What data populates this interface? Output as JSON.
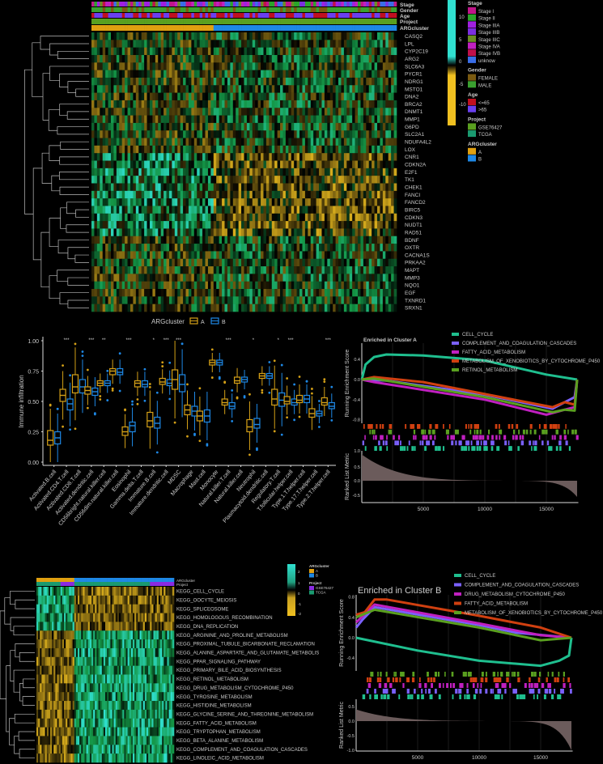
{
  "colors": {
    "background": "#000000",
    "clusterA": "#d4a017",
    "clusterB": "#1e88e5",
    "heat_low": "#f0c020",
    "heat_mid": "#000000",
    "heat_high": "#30e0d0"
  },
  "heatmap_genes": {
    "annotation_labels": [
      "Stage",
      "Gender",
      "Age",
      "Project",
      "ARGcluster"
    ],
    "genes": [
      "CASQ2",
      "LPL",
      "CYP2C19",
      "ARG2",
      "SLC6A3",
      "PYCR1",
      "NDRG1",
      "MSTO1",
      "DNA2",
      "BRCA2",
      "DNMT1",
      "MMP1",
      "G6PD",
      "SLC2A1",
      "NDUFA4L2",
      "LOX",
      "CNR1",
      "CDKN2A",
      "E2F1",
      "TK1",
      "CHEK1",
      "FANCI",
      "FANCD2",
      "BIRC5",
      "CDKN3",
      "NUDT1",
      "RAD51",
      "BDNF",
      "OXTR",
      "CACNA1S",
      "PRKAA2",
      "MAPT",
      "MMP3",
      "NQO1",
      "EGF",
      "TXNRD1",
      "SRXN1"
    ],
    "colorbar_ticks": [
      "10",
      "5",
      "0",
      "-5",
      "-10"
    ],
    "legend": [
      {
        "title": "Stage",
        "items": [
          {
            "label": "Stage I",
            "color": "#c0158a"
          },
          {
            "label": "Stage II",
            "color": "#2aa52a"
          },
          {
            "label": "Stage IIIA",
            "color": "#a020e0"
          },
          {
            "label": "Stage IIIB",
            "color": "#7b2fe0"
          },
          {
            "label": "Stage IIIC",
            "color": "#6b8e23"
          },
          {
            "label": "Stage IVA",
            "color": "#c020c0"
          },
          {
            "label": "Stage IVB",
            "color": "#c0104a"
          },
          {
            "label": "unknow",
            "color": "#3a6ee8"
          }
        ]
      },
      {
        "title": "Gender",
        "items": [
          {
            "label": "FEMALE",
            "color": "#7a5a10"
          },
          {
            "label": "MALE",
            "color": "#3aa030"
          }
        ]
      },
      {
        "title": "Age",
        "items": [
          {
            "label": "<=65",
            "color": "#c01020"
          },
          {
            "label": ">65",
            "color": "#6a40f0"
          }
        ]
      },
      {
        "title": "Project",
        "items": [
          {
            "label": "GSE76427",
            "color": "#5aa020"
          },
          {
            "label": "TCGA",
            "color": "#1a9a70"
          }
        ]
      },
      {
        "title": "ARGcluster",
        "items": [
          {
            "label": "A",
            "color": "#e0a010"
          },
          {
            "label": "B",
            "color": "#1e88e5"
          }
        ]
      }
    ]
  },
  "heatmap_kegg": {
    "annotation_labels": [
      "ARGcluster",
      "Project"
    ],
    "pathways": [
      "KEGG_CELL_CYCLE",
      "KEGG_OOCYTE_MEIOSIS",
      "KEGG_SPLICEOSOME",
      "KEGG_HOMOLOGOUS_RECOMBINATION",
      "KEGG_DNA_REPLICATION",
      "KEGG_ARGININE_AND_PROLINE_METABOLISM",
      "KEGG_PROXIMAL_TUBULE_BICARBONATE_RECLAMATION",
      "KEGG_ALANINE_ASPARTATE_AND_GLUTAMATE_METABOLIS",
      "KEGG_PPAR_SIGNALING_PATHWAY",
      "KEGG_PRIMARY_BILE_ACID_BIOSYNTHESIS",
      "KEGG_RETINOL_METABOLISM",
      "KEGG_DRUG_METABOLISM_CYTOCHROME_P450",
      "KEGG_TYROSINE_METABOLISM",
      "KEGG_HISTIDINE_METABOLISM",
      "KEGG_GLYCINE_SERINE_AND_THREONINE_METABOLISM",
      "KEGG_FATTY_ACID_METABOLISM",
      "KEGG_TRYPTOPHAN_METABOLISM",
      "KEGG_BETA_ALANINE_METABOLISM",
      "KEGG_COMPLEMENT_AND_COAGULATION_CASCADES",
      "KEGG_LINOLEIC_ACID_METABOLISM"
    ],
    "colorbar_ticks": [
      "2",
      "1",
      "0",
      "-1",
      "-2"
    ],
    "legend": [
      {
        "title": "ARGcluster",
        "items": [
          {
            "label": "A",
            "color": "#e0a010"
          },
          {
            "label": "B",
            "color": "#1e88e5"
          }
        ]
      },
      {
        "title": "Project",
        "items": [
          {
            "label": "GSE76427",
            "color": "#8a2be2"
          },
          {
            "label": "TCGA",
            "color": "#1a9a70"
          }
        ]
      }
    ]
  },
  "chart_data": [
    {
      "type": "box",
      "ylabel": "Immune infiltration",
      "ylim": [
        0,
        1
      ],
      "yticks": [
        "0.00",
        "0.25",
        "0.50",
        "0.75",
        "1.00"
      ],
      "legend_title": "ARGcluster",
      "legend_position": "top",
      "series": [
        {
          "name": "A",
          "color": "#d4a017"
        },
        {
          "name": "B",
          "color": "#1e88e5"
        }
      ],
      "categories": [
        "Activated.B.cell",
        "Activated.CD4.T.cell",
        "Activated.CD8.T.cell",
        "Activated.dendritic.cell",
        "CD56bright.natural.killer.cell",
        "CD56dim.natural.killer.cell",
        "Eosinophil",
        "Gamma.delta.T.cell",
        "Immature.B.cell",
        "Immature.dendritic.cell",
        "MDSC",
        "Macrophage",
        "Mast.cell",
        "Monocyte",
        "Natural.killer.T.cell",
        "Natural.killer.cell",
        "Neutrophil",
        "Plasmacytoid.dendritic.cell",
        "Regulatory.T.cell",
        "T.follicular.helper.cell",
        "Type.1.T.helper.cell",
        "Type.17.T.helper.cell",
        "Type.2.T.helper.cell"
      ],
      "median_A": [
        0.18,
        0.55,
        0.62,
        0.59,
        0.65,
        0.75,
        0.25,
        0.65,
        0.34,
        0.66,
        0.68,
        0.43,
        0.38,
        0.82,
        0.49,
        0.67,
        0.29,
        0.71,
        0.52,
        0.5,
        0.51,
        0.4,
        0.49
      ],
      "median_B": [
        0.2,
        0.48,
        0.62,
        0.58,
        0.65,
        0.74,
        0.3,
        0.64,
        0.32,
        0.65,
        0.64,
        0.42,
        0.38,
        0.82,
        0.46,
        0.68,
        0.31,
        0.71,
        0.51,
        0.49,
        0.52,
        0.4,
        0.46
      ],
      "iqr_A": [
        [
          0.14,
          0.26
        ],
        [
          0.5,
          0.6
        ],
        [
          0.57,
          0.72
        ],
        [
          0.56,
          0.62
        ],
        [
          0.63,
          0.67
        ],
        [
          0.72,
          0.77
        ],
        [
          0.22,
          0.29
        ],
        [
          0.62,
          0.67
        ],
        [
          0.29,
          0.41
        ],
        [
          0.64,
          0.69
        ],
        [
          0.6,
          0.76
        ],
        [
          0.39,
          0.47
        ],
        [
          0.34,
          0.42
        ],
        [
          0.8,
          0.84
        ],
        [
          0.47,
          0.52
        ],
        [
          0.65,
          0.7
        ],
        [
          0.25,
          0.35
        ],
        [
          0.69,
          0.73
        ],
        [
          0.47,
          0.6
        ],
        [
          0.48,
          0.54
        ],
        [
          0.49,
          0.55
        ],
        [
          0.37,
          0.44
        ],
        [
          0.47,
          0.53
        ]
      ],
      "iqr_B": [
        [
          0.15,
          0.25
        ],
        [
          0.43,
          0.52
        ],
        [
          0.57,
          0.68
        ],
        [
          0.55,
          0.61
        ],
        [
          0.63,
          0.67
        ],
        [
          0.72,
          0.77
        ],
        [
          0.25,
          0.33
        ],
        [
          0.62,
          0.67
        ],
        [
          0.28,
          0.37
        ],
        [
          0.63,
          0.68
        ],
        [
          0.58,
          0.72
        ],
        [
          0.38,
          0.46
        ],
        [
          0.33,
          0.43
        ],
        [
          0.8,
          0.84
        ],
        [
          0.44,
          0.49
        ],
        [
          0.66,
          0.7
        ],
        [
          0.28,
          0.36
        ],
        [
          0.69,
          0.73
        ],
        [
          0.46,
          0.57
        ],
        [
          0.47,
          0.52
        ],
        [
          0.49,
          0.55
        ],
        [
          0.38,
          0.42
        ],
        [
          0.44,
          0.49
        ]
      ],
      "significance": [
        "",
        "***",
        "",
        "***",
        "**",
        "",
        "***",
        "",
        "*",
        "***",
        "***",
        "",
        "",
        "",
        "***",
        "",
        "*",
        "",
        "*",
        "***",
        "",
        "",
        "***"
      ]
    },
    {
      "type": "line",
      "title": "Enriched in Cluster A",
      "ylabel": "Running Enrichment Score",
      "ylabel2": "Ranked List Metric",
      "xticks": [
        "5000",
        "10000",
        "15000"
      ],
      "yticks": [
        "-0.8",
        "-0.4",
        "0.0",
        "0.4"
      ],
      "yticks2": [
        "1.0",
        "0.5",
        "0.0",
        "-0.5"
      ],
      "xlim": [
        0,
        17500
      ],
      "series": [
        {
          "name": "CELL_CYCLE",
          "color": "#1fbf8f",
          "points": [
            [
              0,
              0
            ],
            [
              300,
              0.3
            ],
            [
              1000,
              0.45
            ],
            [
              2000,
              0.5
            ],
            [
              5000,
              0.48
            ],
            [
              10000,
              0.38
            ],
            [
              15000,
              0.1
            ],
            [
              17500,
              0
            ]
          ]
        },
        {
          "name": "COMPLEMENT_AND_COAGULATION_CASCADES",
          "color": "#7b61ff",
          "points": [
            [
              0,
              0
            ],
            [
              2000,
              -0.02
            ],
            [
              10000,
              -0.3
            ],
            [
              15500,
              -0.58
            ],
            [
              16500,
              -0.45
            ],
            [
              17300,
              -0.35
            ],
            [
              17500,
              0
            ]
          ]
        },
        {
          "name": "FATTY_ACID_METABOLISM",
          "color": "#c020c0",
          "points": [
            [
              0,
              0
            ],
            [
              1000,
              -0.05
            ],
            [
              10000,
              -0.4
            ],
            [
              15000,
              -0.7
            ],
            [
              16500,
              -0.6
            ],
            [
              17300,
              -0.55
            ],
            [
              17500,
              0
            ]
          ]
        },
        {
          "name": "METABOLISM_OF_XENOBIOTICS_BY_CYTOCHROME_P450",
          "color": "#d04010",
          "points": [
            [
              0,
              0
            ],
            [
              1000,
              0.05
            ],
            [
              5000,
              -0.05
            ],
            [
              15500,
              -0.55
            ],
            [
              16500,
              -0.45
            ],
            [
              17300,
              -0.5
            ],
            [
              17500,
              0
            ]
          ]
        },
        {
          "name": "RETINOL_METABOLISM",
          "color": "#5aa020",
          "points": [
            [
              0,
              0
            ],
            [
              1000,
              0.02
            ],
            [
              10000,
              -0.35
            ],
            [
              15500,
              -0.65
            ],
            [
              16500,
              -0.6
            ],
            [
              17300,
              -0.62
            ],
            [
              17500,
              0
            ]
          ]
        }
      ]
    },
    {
      "type": "line",
      "title": "Enriched in Cluster B",
      "ylabel": "Running Enrichment Score",
      "ylabel2": "Ranked List Metric",
      "xticks": [
        "5000",
        "10000",
        "15000"
      ],
      "yticks": [
        "-0.4",
        "0.0",
        "0.4",
        "0.8"
      ],
      "yticks2": [
        "0.5",
        "0.0",
        "-0.5",
        "-1.0"
      ],
      "xlim": [
        0,
        17500
      ],
      "series": [
        {
          "name": "CELL_CYCLE",
          "color": "#1fbf8f",
          "points": [
            [
              0,
              0
            ],
            [
              5000,
              -0.25
            ],
            [
              10000,
              -0.45
            ],
            [
              15000,
              -0.55
            ],
            [
              16500,
              -0.45
            ],
            [
              17300,
              -0.35
            ],
            [
              17500,
              0
            ]
          ]
        },
        {
          "name": "COMPLEMENT_AND_COAGULATION_CASCADES",
          "color": "#7b61ff",
          "points": [
            [
              0,
              0.2
            ],
            [
              500,
              0.35
            ],
            [
              1500,
              0.6
            ],
            [
              10000,
              0.25
            ],
            [
              13000,
              0.1
            ],
            [
              17500,
              0
            ]
          ]
        },
        {
          "name": "DRUG_METABOLISM_CYTOCHROME_P450",
          "color": "#c020c0",
          "points": [
            [
              0,
              0.3
            ],
            [
              1500,
              0.65
            ],
            [
              10000,
              0.28
            ],
            [
              15000,
              0.05
            ],
            [
              17500,
              0
            ]
          ]
        },
        {
          "name": "FATTY_ACID_METABOLISM",
          "color": "#d04010",
          "points": [
            [
              0,
              0.45
            ],
            [
              700,
              0.5
            ],
            [
              1500,
              0.75
            ],
            [
              2500,
              0.75
            ],
            [
              10000,
              0.43
            ],
            [
              15000,
              0.2
            ],
            [
              17500,
              0
            ]
          ]
        },
        {
          "name": "METABOLISM_OF_XENOBIOTICS_BY_CYTOCHROME_P450",
          "color": "#5aa020",
          "points": [
            [
              0,
              0.4
            ],
            [
              1500,
              0.55
            ],
            [
              10000,
              0.2
            ],
            [
              15000,
              -0.05
            ],
            [
              17500,
              0
            ]
          ]
        }
      ]
    }
  ]
}
